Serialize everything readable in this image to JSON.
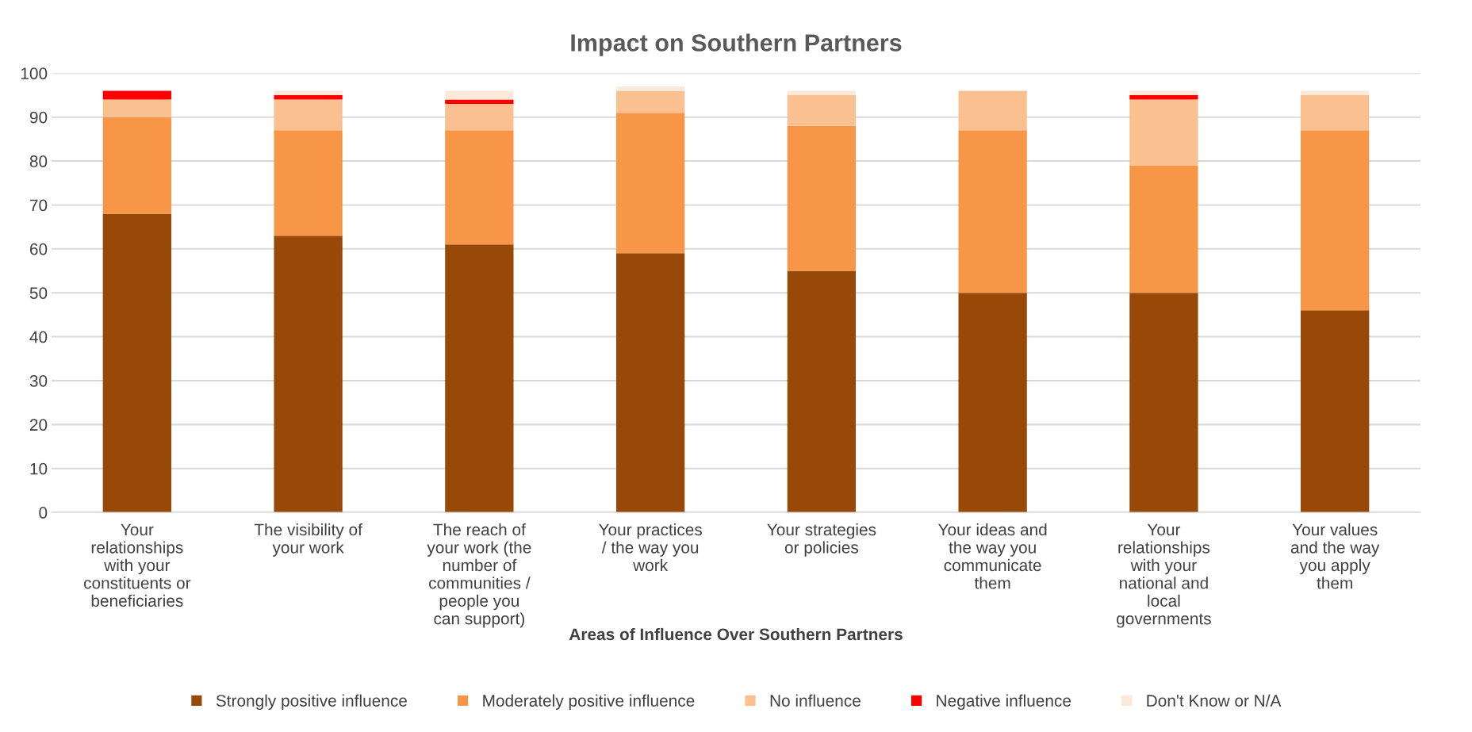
{
  "chart_data": {
    "type": "bar",
    "title": "Impact on Southern Partners",
    "xlabel": "Areas of Influence Over Southern Partners",
    "categories": [
      "Your relationships with your constituents or beneficiaries",
      "The visibility of your work",
      "The reach of your work (the number of communities / people you can support)",
      "Your practices / the way you work",
      "Your strategies or policies",
      "Your ideas and the way you communicate them",
      "Your relationships with your national and local governments",
      "Your values and the way you apply them"
    ],
    "stacked": true,
    "series": [
      {
        "name": "Strongly positive influence",
        "color": "#984807",
        "values": [
          68,
          63,
          61,
          59,
          55,
          50,
          50,
          46
        ]
      },
      {
        "name": "Moderately positive influence",
        "color": "#f79646",
        "values": [
          22,
          24,
          26,
          32,
          33,
          37,
          29,
          41
        ]
      },
      {
        "name": "No influence",
        "color": "#fac090",
        "values": [
          4,
          7,
          6,
          5,
          7,
          9,
          15,
          8
        ]
      },
      {
        "name": "Negative influence",
        "color": "#ff0000",
        "values": [
          2,
          1,
          1,
          0,
          0,
          0,
          1,
          0
        ]
      },
      {
        "name": "Don't Know or N/A",
        "color": "#fde9d9",
        "values": [
          0,
          1,
          2,
          1,
          1,
          0,
          1,
          1
        ]
      }
    ],
    "ylim": [
      0,
      100
    ],
    "yticks": [
      0,
      10,
      20,
      30,
      40,
      50,
      60,
      70,
      80,
      90,
      100
    ],
    "grid": "y",
    "legend": "bottom"
  }
}
